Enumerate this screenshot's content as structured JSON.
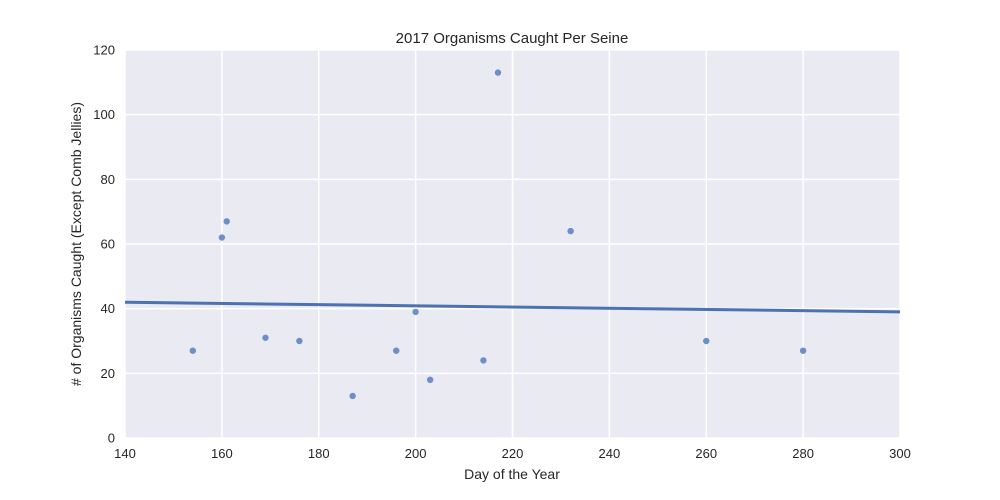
{
  "chart_data": {
    "type": "scatter",
    "title": "2017 Organisms Caught Per Seine",
    "xlabel": "Day of the Year",
    "ylabel": "# of Organisms Caught (Except Comb Jellies)",
    "xlim": [
      140,
      300
    ],
    "ylim": [
      0,
      120
    ],
    "xticks": [
      140,
      160,
      180,
      200,
      220,
      240,
      260,
      280,
      300
    ],
    "yticks": [
      0,
      20,
      40,
      60,
      80,
      100,
      120
    ],
    "grid": true,
    "points": [
      {
        "x": 154,
        "y": 27
      },
      {
        "x": 160,
        "y": 62
      },
      {
        "x": 161,
        "y": 67
      },
      {
        "x": 169,
        "y": 31
      },
      {
        "x": 176,
        "y": 30
      },
      {
        "x": 187,
        "y": 13
      },
      {
        "x": 196,
        "y": 27
      },
      {
        "x": 200,
        "y": 39
      },
      {
        "x": 203,
        "y": 18
      },
      {
        "x": 214,
        "y": 24
      },
      {
        "x": 217,
        "y": 113
      },
      {
        "x": 232,
        "y": 64
      },
      {
        "x": 260,
        "y": 30
      },
      {
        "x": 280,
        "y": 27
      }
    ],
    "regression_line": {
      "x": [
        140,
        300
      ],
      "y": [
        42.0,
        39.0
      ]
    },
    "colors": {
      "background": "#eaeaf2",
      "grid": "#ffffff",
      "points": "#6e8fc6",
      "line": "#4c72b0"
    }
  }
}
